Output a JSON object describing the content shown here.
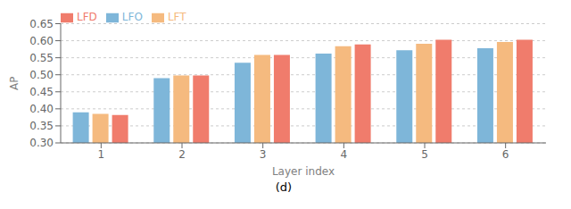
{
  "chart_data": {
    "type": "bar",
    "title": "(d)",
    "xlabel": "Layer index",
    "ylabel": "AP",
    "categories": [
      1,
      2,
      3,
      4,
      5,
      6
    ],
    "series": [
      {
        "name": "LFO",
        "color": "#7EB6D9",
        "values": [
          0.39,
          0.49,
          0.535,
          0.562,
          0.572,
          0.578
        ]
      },
      {
        "name": "LFT",
        "color": "#F5BA7F",
        "values": [
          0.385,
          0.498,
          0.558,
          0.584,
          0.591,
          0.596
        ]
      },
      {
        "name": "LFD",
        "color": "#F07C6C",
        "values": [
          0.382,
          0.498,
          0.558,
          0.589,
          0.603,
          0.603
        ]
      }
    ],
    "ylim": [
      0.3,
      0.65
    ],
    "yticks": [
      {
        "value": 0.3,
        "label": "0.30"
      },
      0.35,
      {
        "value": 0.4,
        "label": "0.40"
      },
      0.45,
      {
        "value": 0.5,
        "label": "0.50"
      },
      0.55,
      {
        "value": 0.6,
        "label": "0.60"
      },
      0.65
    ],
    "grid": true,
    "legend": "upper left"
  }
}
